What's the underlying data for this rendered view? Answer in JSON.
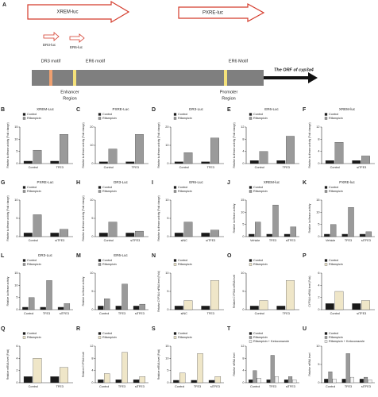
{
  "diagram": {
    "panel": "A",
    "xrem_luc": "XREM-luc",
    "pxre_luc": "PXRE-luc",
    "dr3_luc": "DR3-luc",
    "er6_luc": "ER6-luc",
    "dr3_motif": "DR3 motif",
    "er6_motif": "ER6 motif",
    "er6_motif_2": "ER6 Motif",
    "enhancer": "Enhancer",
    "enhancer_region": "Region",
    "promoter": "Promoter",
    "promoter_region": "Region",
    "orf": "The ORF of cyp3a4"
  },
  "chart_data": [
    {
      "type": "bar",
      "panel": "B",
      "title": "XREM-Luc",
      "ylabel": "Relative luciferase activity (Fold change)",
      "categories": [
        "Control",
        "TFE3"
      ],
      "series": [
        {
          "name": "Control",
          "color": "#1a1a1a",
          "values": [
            1,
            1
          ]
        },
        {
          "name": "Rifampicin",
          "color": "#9a9a9a",
          "values": [
            5.5,
            12
          ]
        }
      ],
      "ylim": [
        0,
        15
      ],
      "yticks": [
        0,
        5,
        10,
        15
      ]
    },
    {
      "type": "bar",
      "panel": "C",
      "title": "PXRE-Luc",
      "ylabel": "Relative luciferase activity (Fold change)",
      "categories": [
        "Control",
        "TFE3"
      ],
      "series": [
        {
          "name": "Control",
          "color": "#1a1a1a",
          "values": [
            1,
            1
          ]
        },
        {
          "name": "Rifampicin",
          "color": "#9a9a9a",
          "values": [
            8,
            16
          ]
        }
      ],
      "ylim": [
        0,
        20
      ],
      "yticks": [
        0,
        10,
        20
      ]
    },
    {
      "type": "bar",
      "panel": "D",
      "title": "DR3-Luc",
      "ylabel": "Relative luciferase activity (Fold change)",
      "categories": [
        "Control",
        "TFE3"
      ],
      "series": [
        {
          "name": "Control",
          "color": "#1a1a1a",
          "values": [
            1,
            1
          ]
        },
        {
          "name": "Rifampicin",
          "color": "#9a9a9a",
          "values": [
            6,
            14
          ]
        }
      ],
      "ylim": [
        0,
        20
      ],
      "yticks": [
        0,
        10,
        20
      ]
    },
    {
      "type": "bar",
      "panel": "E",
      "title": "ER6-Luc",
      "ylabel": "Relative luciferase activity (Fold change)",
      "categories": [
        "Control",
        "TFE3"
      ],
      "series": [
        {
          "name": "Control",
          "color": "#1a1a1a",
          "values": [
            1,
            1
          ]
        },
        {
          "name": "Rifampicin",
          "color": "#9a9a9a",
          "values": [
            4,
            9
          ]
        }
      ],
      "ylim": [
        0,
        12
      ],
      "yticks": [
        0,
        4,
        8,
        12
      ]
    },
    {
      "type": "bar",
      "panel": "F",
      "title": "XREM-luc",
      "ylabel": "Relative luciferase activity (Fold change)",
      "categories": [
        "Control",
        "siTFE3"
      ],
      "series": [
        {
          "name": "Control",
          "color": "#1a1a1a",
          "values": [
            1,
            1
          ]
        },
        {
          "name": "Rifampicin",
          "color": "#9a9a9a",
          "values": [
            7,
            2.5
          ]
        }
      ],
      "ylim": [
        0,
        12
      ],
      "yticks": [
        0,
        4,
        8,
        12
      ]
    },
    {
      "type": "bar",
      "panel": "G",
      "title": "PXRE-Luc",
      "ylabel": "Relative luciferase activity (Fold change)",
      "categories": [
        "Control",
        "siTFE3"
      ],
      "series": [
        {
          "name": "Control",
          "color": "#1a1a1a",
          "values": [
            1,
            1
          ]
        },
        {
          "name": "Rifampicin",
          "color": "#9a9a9a",
          "values": [
            6,
            2
          ]
        }
      ],
      "ylim": [
        0,
        10
      ],
      "yticks": [
        0,
        5,
        10
      ]
    },
    {
      "type": "bar",
      "panel": "H",
      "title": "DR3-Luc",
      "ylabel": "Relative luciferase activity (Fold change)",
      "categories": [
        "Control",
        "siTFE3"
      ],
      "series": [
        {
          "name": "Control",
          "color": "#1a1a1a",
          "values": [
            1,
            1
          ]
        },
        {
          "name": "Rifampicin",
          "color": "#9a9a9a",
          "values": [
            4,
            1.5
          ]
        }
      ],
      "ylim": [
        0,
        10
      ],
      "yticks": [
        0,
        5,
        10
      ]
    },
    {
      "type": "bar",
      "panel": "I",
      "title": "ER6-Luc",
      "ylabel": "Relative luciferase activity (Fold change)",
      "categories": [
        "siNC",
        "siTFE3"
      ],
      "series": [
        {
          "name": "Control",
          "color": "#1a1a1a",
          "values": [
            1,
            1
          ]
        },
        {
          "name": "Rifampicin",
          "color": "#9a9a9a",
          "values": [
            4,
            1.8
          ]
        }
      ],
      "ylim": [
        0,
        10
      ],
      "yticks": [
        0,
        5,
        10
      ]
    },
    {
      "type": "bar",
      "panel": "J",
      "title": "XREM-luc",
      "ylabel": "Relative luciferase activity",
      "categories": [
        "Vehicle",
        "TFE3",
        "siTFE3"
      ],
      "series": [
        {
          "name": "Control",
          "color": "#1a1a1a",
          "values": [
            1,
            1,
            1
          ]
        },
        {
          "name": "Rifampicin",
          "color": "#9a9a9a",
          "values": [
            6,
            13,
            4
          ]
        }
      ],
      "ylim": [
        0,
        15
      ],
      "yticks": [
        0,
        5,
        10,
        15
      ]
    },
    {
      "type": "bar",
      "panel": "K",
      "title": "PXRE-luc",
      "ylabel": "Relative luciferase activity",
      "categories": [
        "Vehicle",
        "TFE3",
        "siTFE3"
      ],
      "series": [
        {
          "name": "Control",
          "color": "#1a1a1a",
          "values": [
            1,
            1,
            1
          ]
        },
        {
          "name": "Rifampicin",
          "color": "#9a9a9a",
          "values": [
            5,
            12,
            2
          ]
        }
      ],
      "ylim": [
        0,
        15
      ],
      "yticks": [
        0,
        5,
        10,
        15
      ]
    },
    {
      "type": "bar",
      "panel": "L",
      "title": "DR3-Luc",
      "ylabel": "Relative luciferase activity",
      "categories": [
        "Control",
        "TFE3",
        "siTFE3"
      ],
      "series": [
        {
          "name": "Control",
          "color": "#1a1a1a",
          "values": [
            1,
            1,
            1
          ]
        },
        {
          "name": "Rifampicin",
          "color": "#9a9a9a",
          "values": [
            5,
            12,
            2.5
          ]
        }
      ],
      "ylim": [
        0,
        15
      ],
      "yticks": [
        0,
        5,
        10,
        15
      ]
    },
    {
      "type": "bar",
      "panel": "M",
      "title": "ER6-Luc",
      "ylabel": "Relative luciferase activity",
      "categories": [
        "Control",
        "TFE3",
        "siTFE3"
      ],
      "series": [
        {
          "name": "Control",
          "color": "#1a1a1a",
          "values": [
            1,
            1,
            1
          ]
        },
        {
          "name": "Rifampicin",
          "color": "#9a9a9a",
          "values": [
            3,
            7,
            1.5
          ]
        }
      ],
      "ylim": [
        0,
        10
      ],
      "yticks": [
        0,
        5,
        10
      ]
    },
    {
      "type": "bar",
      "panel": "N",
      "ylabel": "Relative CYP3A4 mRNA level (Fold)",
      "categories": [
        "siNC",
        "TFE3"
      ],
      "series": [
        {
          "name": "Control",
          "color": "#1a1a1a",
          "values": [
            1,
            1
          ]
        },
        {
          "name": "Rifampicin",
          "color": "#efe6c8",
          "values": [
            2.5,
            8
          ]
        }
      ],
      "ylim": [
        0,
        10
      ],
      "yticks": [
        0,
        5,
        10
      ]
    },
    {
      "type": "bar",
      "panel": "O",
      "ylabel": "Relative CYP3A4 mRNA level",
      "categories": [
        "Control",
        "TFE3"
      ],
      "series": [
        {
          "name": "Control",
          "color": "#1a1a1a",
          "values": [
            1,
            1
          ]
        },
        {
          "name": "Rifampicin",
          "color": "#efe6c8",
          "values": [
            2.5,
            8
          ]
        }
      ],
      "ylim": [
        0,
        10
      ],
      "yticks": [
        0,
        5,
        10
      ]
    },
    {
      "type": "bar",
      "panel": "P",
      "ylabel": "CYP3A4 mRNA level (Fold)",
      "categories": [
        "Control",
        "siTFE3"
      ],
      "series": [
        {
          "name": "Control",
          "color": "#1a1a1a",
          "values": [
            1,
            1
          ]
        },
        {
          "name": "Rifampicin",
          "color": "#efe6c8",
          "values": [
            3,
            1.5
          ]
        }
      ],
      "ylim": [
        0,
        6
      ],
      "yticks": [
        0,
        2,
        4,
        6
      ]
    },
    {
      "type": "bar",
      "panel": "Q",
      "ylabel": "Relative mRNA level (Fold)",
      "categories": [
        "Control",
        "TFE3"
      ],
      "series": [
        {
          "name": "Control",
          "color": "#1a1a1a",
          "values": [
            1,
            1
          ]
        },
        {
          "name": "Rifampicin",
          "color": "#efe6c8",
          "values": [
            4,
            2.5
          ]
        }
      ],
      "ylim": [
        0,
        6
      ],
      "yticks": [
        0,
        2,
        4,
        6
      ]
    },
    {
      "type": "bar",
      "panel": "R",
      "ylabel": "Relative CYP3A4 level",
      "categories": [
        "Control",
        "TFE3",
        "siTFE3"
      ],
      "series": [
        {
          "name": "Control",
          "color": "#1a1a1a",
          "values": [
            1,
            1,
            1
          ]
        },
        {
          "name": "Rifampicin",
          "color": "#efe6c8",
          "values": [
            3,
            10,
            2
          ]
        }
      ],
      "ylim": [
        0,
        12
      ],
      "yticks": [
        0,
        4,
        8,
        12
      ]
    },
    {
      "type": "bar",
      "panel": "S",
      "ylabel": "Relative mRNA level (Fold)",
      "categories": [
        "Control",
        "TFE3",
        "siTFE3"
      ],
      "series": [
        {
          "name": "Control",
          "color": "#1a1a1a",
          "values": [
            1,
            1,
            1
          ]
        },
        {
          "name": "Rifampicin",
          "color": "#efe6c8",
          "values": [
            4,
            12,
            2.5
          ]
        }
      ],
      "ylim": [
        0,
        15
      ],
      "yticks": [
        0,
        5,
        10,
        15
      ]
    },
    {
      "type": "bar",
      "panel": "T",
      "ylabel": "Relative mRNA level",
      "categories": [
        "Control",
        "TFE3",
        "siTFE3"
      ],
      "series": [
        {
          "name": "Control",
          "color": "#1a1a1a",
          "values": [
            1,
            1,
            1
          ]
        },
        {
          "name": "Rifampicin",
          "color": "#9a9a9a",
          "values": [
            4,
            9,
            2
          ]
        },
        {
          "name": "Rifampicin + Ketoconazole",
          "color": "#f4f4f4",
          "values": [
            1.5,
            2,
            1
          ]
        }
      ],
      "ylim": [
        0,
        12
      ],
      "yticks": [
        0,
        4,
        8,
        12
      ]
    },
    {
      "type": "bar",
      "panel": "U",
      "ylabel": "Relative mRNA level",
      "categories": [
        "Control",
        "TFE3",
        "siTFE3"
      ],
      "series": [
        {
          "name": "Control",
          "color": "#1a1a1a",
          "values": [
            1,
            1,
            1
          ]
        },
        {
          "name": "Rifampicin",
          "color": "#9a9a9a",
          "values": [
            3,
            8,
            1.5
          ]
        },
        {
          "name": "Rifampicin + Ketoconazole",
          "color": "#f4f4f4",
          "values": [
            1,
            1.5,
            0.8
          ]
        }
      ],
      "ylim": [
        0,
        10
      ],
      "yticks": [
        0,
        5,
        10
      ]
    }
  ]
}
